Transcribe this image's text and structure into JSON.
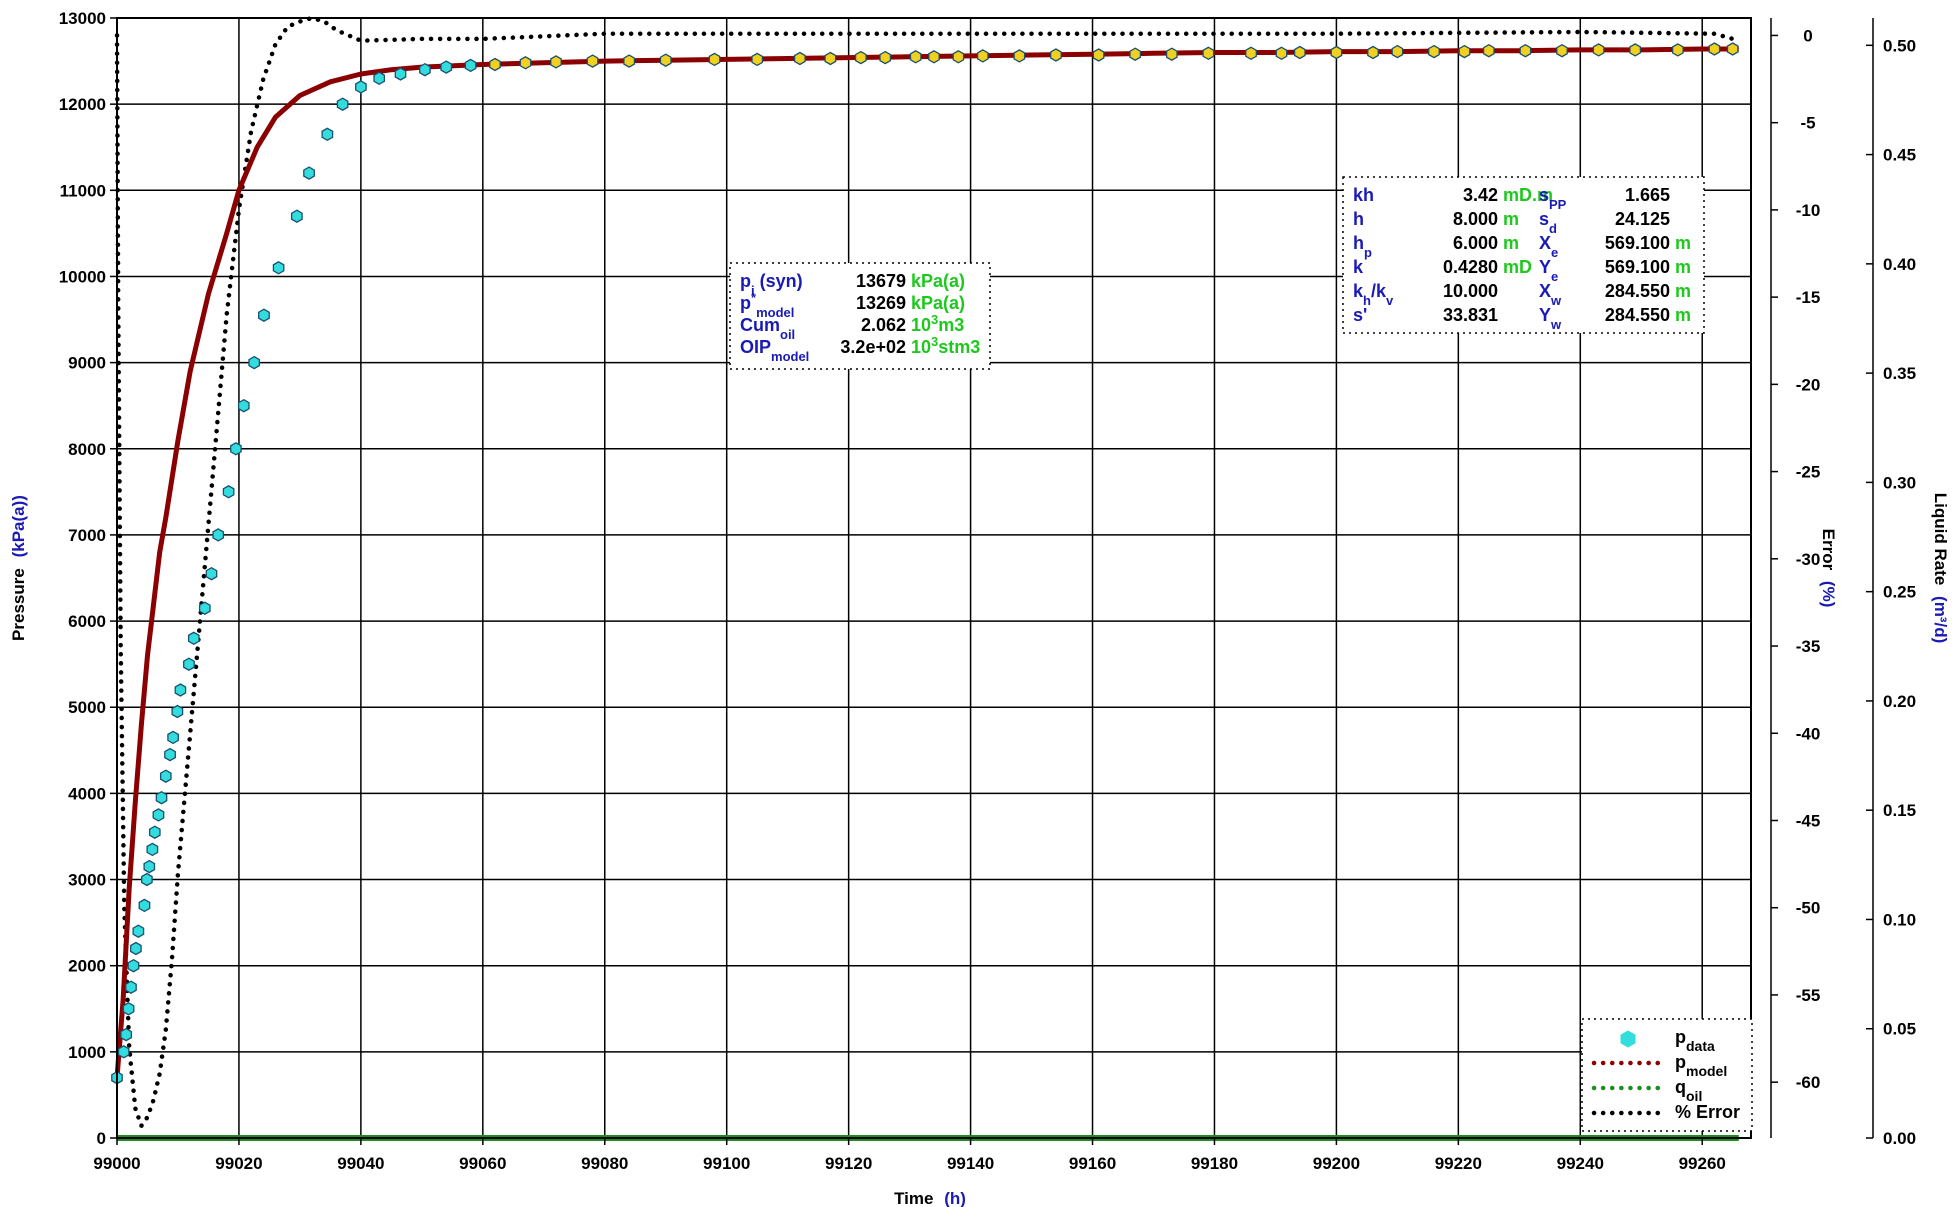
{
  "chart_data": {
    "type": "line",
    "x_axis": {
      "label": "Time",
      "unit": "(h)",
      "range": [
        99000,
        99268
      ],
      "ticks": [
        99000,
        99020,
        99040,
        99060,
        99080,
        99100,
        99120,
        99140,
        99160,
        99180,
        99200,
        99220,
        99240,
        99260
      ]
    },
    "y_axis_left": {
      "label": "Pressure",
      "unit": "(kPa(a))",
      "range": [
        0,
        13000
      ],
      "ticks": [
        0,
        1000,
        2000,
        3000,
        4000,
        5000,
        6000,
        7000,
        8000,
        9000,
        10000,
        11000,
        12000,
        13000
      ]
    },
    "y_axis_error": {
      "label": "Error",
      "unit": "(%)",
      "range": [
        -63.2,
        1.0
      ],
      "ticks": [
        0,
        -5,
        -10,
        -15,
        -20,
        -25,
        -30,
        -35,
        -40,
        -45,
        -50,
        -55,
        -60
      ]
    },
    "y_axis_rate": {
      "label": "Liquid Rate",
      "unit": "(m³/d)",
      "range": [
        0,
        0.5125
      ],
      "ticks": [
        "0.00",
        "0.05",
        "0.10",
        "0.15",
        "0.20",
        "0.25",
        "0.30",
        "0.35",
        "0.40",
        "0.45",
        "0.50"
      ]
    },
    "grid": true,
    "legend": {
      "placement": "bottom-right",
      "entries": [
        {
          "base": "p",
          "sub": "data",
          "style": "marker",
          "color": "#33dddd"
        },
        {
          "base": "p",
          "sub": "model",
          "style": "dotted",
          "color": "#8b0000"
        },
        {
          "base": "q",
          "sub": "oil",
          "style": "dotted",
          "color": "#1e8c1e"
        },
        {
          "base": "% Error",
          "sub": "",
          "style": "dotted",
          "color": "#000000"
        }
      ]
    },
    "series": [
      {
        "name": "pdata",
        "axis": "pressure",
        "x": [
          99000.0,
          99001.1,
          99001.5,
          99001.9,
          99002.3,
          99002.7,
          99003.1,
          99003.5,
          99004.5,
          99004.9,
          99005.3,
          99005.8,
          99006.2,
          99006.8,
          99007.3,
          99008.0,
          99008.7,
          99009.2,
          99009.9,
          99010.4,
          99011.8,
          99012.6,
          99014.4,
          99015.5,
          99016.6,
          99018.3,
          99019.5,
          99020.8,
          99022.5,
          99024.1,
          99026.5,
          99029.5,
          99031.5,
          99034.5,
          99037.0,
          99040.0,
          99043.0,
          99046.5,
          99050.5,
          99054.0,
          99058.0,
          99062.0,
          99067.0,
          99072.0,
          99078.0,
          99084.0,
          99090.0,
          99098.0,
          99105.0,
          99112.0,
          99117.0,
          99122.0,
          99126.0,
          99131.0,
          99134.0,
          99138.0,
          99142.0,
          99148.0,
          99154.0,
          99161.0,
          99167.0,
          99173.0,
          99179.0,
          99186.0,
          99191.0,
          99194.0,
          99200.0,
          99206.0,
          99210.0,
          99216.0,
          99221.0,
          99225.0,
          99231.0,
          99237.0,
          99243.0,
          99249.0,
          99256.0,
          99262.0,
          99265.0
        ],
        "y": [
          700,
          1000,
          1200,
          1500,
          1750,
          2000,
          2200,
          2400,
          2700,
          3000,
          3150,
          3350,
          3550,
          3750,
          3950,
          4200,
          4450,
          4650,
          4950,
          5200,
          5500,
          5800,
          6150,
          6550,
          7000,
          7500,
          8000,
          8500,
          9000,
          9550,
          10100,
          10700,
          11200,
          11650,
          12000,
          12200,
          12300,
          12350,
          12400,
          12430,
          12450,
          12460,
          12480,
          12490,
          12500,
          12500,
          12510,
          12520,
          12520,
          12530,
          12530,
          12540,
          12540,
          12550,
          12550,
          12550,
          12560,
          12560,
          12570,
          12570,
          12580,
          12580,
          12590,
          12590,
          12590,
          12600,
          12600,
          12600,
          12610,
          12610,
          12610,
          12620,
          12620,
          12620,
          12630,
          12630,
          12630,
          12640,
          12640
        ]
      },
      {
        "name": "pmodel",
        "axis": "pressure",
        "x": [
          99000,
          99001,
          99002,
          99003,
          99004,
          99005,
          99006,
          99007,
          99008,
          99010,
          99012,
          99015,
          99018,
          99020,
          99023,
          99026,
          99030,
          99035,
          99040,
          99045,
          99050,
          99060,
          99070,
          99080,
          99090,
          99100,
          99110,
          99120,
          99130,
          99140,
          99150,
          99160,
          99170,
          99180,
          99190,
          99200,
          99210,
          99220,
          99230,
          99240,
          99250,
          99260,
          99266
        ],
        "y": [
          700,
          1600,
          2900,
          3900,
          4800,
          5600,
          6200,
          6800,
          7200,
          8100,
          8900,
          9800,
          10500,
          11000,
          11500,
          11850,
          12100,
          12260,
          12350,
          12400,
          12430,
          12460,
          12480,
          12500,
          12510,
          12520,
          12530,
          12540,
          12550,
          12560,
          12570,
          12580,
          12590,
          12600,
          12600,
          12610,
          12610,
          12620,
          12620,
          12630,
          12630,
          12640,
          12640
        ]
      },
      {
        "name": "qoil",
        "axis": "rate",
        "x": [
          99000,
          99266
        ],
        "y": [
          0.0,
          0.0
        ]
      },
      {
        "name": "% Error",
        "axis": "error",
        "x": [
          99000.0,
          99000.2,
          99000.6,
          99001.2,
          99002.0,
          99003.0,
          99004.0,
          99005.0,
          99006.0,
          99007.0,
          99008.0,
          99009.0,
          99010.0,
          99012.0,
          99014.0,
          99016.0,
          99018.0,
          99020.0,
          99022.0,
          99024.0,
          99026.0,
          99028.0,
          99030.0,
          99032.0,
          99034.0,
          99036.0,
          99040.0,
          99050.0,
          99060.0,
          99080.0,
          99120.0,
          99160.0,
          99200.0,
          99240.0,
          99262.0,
          99265.0
        ],
        "y": [
          0.0,
          -15.0,
          -35.0,
          -50.0,
          -58.0,
          -61.5,
          -62.5,
          -62.0,
          -61.0,
          -59.5,
          -57.0,
          -53.0,
          -48.0,
          -40.0,
          -32.0,
          -24.0,
          -16.0,
          -10.0,
          -5.5,
          -2.5,
          -0.5,
          0.5,
          0.8,
          1.0,
          0.8,
          0.3,
          -0.3,
          -0.2,
          -0.2,
          0.1,
          0.1,
          0.1,
          0.1,
          0.2,
          0.1,
          -0.2
        ]
      }
    ]
  },
  "param_box_1": {
    "rows": [
      {
        "label": "p",
        "sub": "i",
        "tail": " (syn)",
        "sup": "",
        "value": "13679",
        "unit": "kPa(a)",
        "unit_sup": "",
        "unit_tail": ""
      },
      {
        "label": "p",
        "sup": "*",
        "sub": "model",
        "tail": "",
        "value": "13269",
        "unit": "kPa(a)",
        "unit_sup": "",
        "unit_tail": ""
      },
      {
        "label": "Cum",
        "sub": "oil",
        "sup": "",
        "tail": "",
        "value": "2.062",
        "unit": "10",
        "unit_sup": "3",
        "unit_tail": "m3"
      },
      {
        "label": "OIP",
        "sub": "model",
        "sup": "",
        "tail": "",
        "value": "3.2e+02",
        "unit": "10",
        "unit_sup": "3",
        "unit_tail": "stm3"
      }
    ]
  },
  "param_box_2": {
    "left": [
      {
        "label": "kh",
        "sub": "",
        "sub2": "",
        "value": "3.42",
        "unit": "mD.m"
      },
      {
        "label": "h",
        "sub": "",
        "sub2": "",
        "value": "8.000",
        "unit": "m"
      },
      {
        "label": "h",
        "sub": "p",
        "sub2": "",
        "value": "6.000",
        "unit": "m"
      },
      {
        "label": "k",
        "sub": "",
        "sub2": "",
        "value": "0.4280",
        "unit": "mD"
      },
      {
        "label": "k",
        "sub": "h",
        "sub2": "v",
        "value": "10.000",
        "unit": ""
      },
      {
        "label": "s'",
        "sub": "",
        "sub2": "",
        "value": "33.831",
        "unit": ""
      }
    ],
    "right": [
      {
        "label": "s",
        "sub": "PP",
        "value": "1.665",
        "unit": ""
      },
      {
        "label": "s",
        "sub": "d",
        "value": "24.125",
        "unit": ""
      },
      {
        "label": "X",
        "sub": "e",
        "value": "569.100",
        "unit": "m"
      },
      {
        "label": "Y",
        "sub": "e",
        "value": "569.100",
        "unit": "m"
      },
      {
        "label": "X",
        "sub": "w",
        "value": "284.550",
        "unit": "m"
      },
      {
        "label": "Y",
        "sub": "w",
        "value": "284.550",
        "unit": "m"
      }
    ]
  },
  "colors": {
    "blue": "#1a1ab4",
    "green": "#1ec81e",
    "pdata_fill": "#33dddd",
    "pdata_stroke": "#1a5070",
    "pdata_late_fill": "#f0d020",
    "pmodel": "#8b0000",
    "qoil": "#1e8c1e",
    "error": "#000000",
    "grid": "#000000"
  }
}
